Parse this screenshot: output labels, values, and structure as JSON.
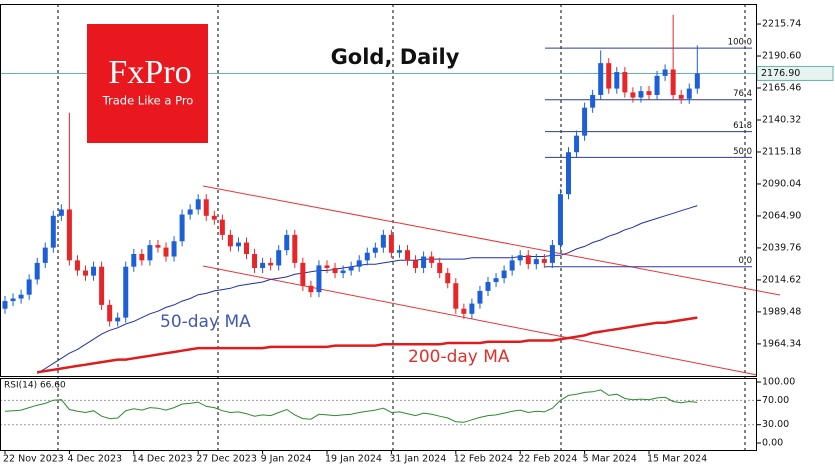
{
  "branding": {
    "logo": "FxPro",
    "tagline": "Trade Like a Pro"
  },
  "chart_data": [
    {
      "type": "candlestick",
      "title": "Gold, Daily",
      "categories": [
        "22 Nov 2023",
        null,
        null,
        null,
        null,
        null,
        null,
        null,
        "4 Dec 2023",
        null,
        null,
        null,
        null,
        null,
        null,
        null,
        "14 Dec 2023",
        null,
        null,
        null,
        null,
        null,
        null,
        null,
        "27 Dec 2023",
        null,
        null,
        null,
        null,
        null,
        null,
        null,
        "9 Jan 2024",
        null,
        null,
        null,
        null,
        null,
        null,
        null,
        "19 Jan 2024",
        null,
        null,
        null,
        null,
        null,
        null,
        null,
        "31 Jan 2024",
        null,
        null,
        null,
        null,
        null,
        null,
        null,
        "12 Feb 2024",
        null,
        null,
        null,
        null,
        null,
        null,
        null,
        "22 Feb 2024",
        null,
        null,
        null,
        null,
        null,
        null,
        null,
        "5 Mar 2024",
        null,
        null,
        null,
        null,
        null,
        null,
        null,
        "15 Mar 2024",
        null,
        null,
        null,
        null,
        null,
        null
      ],
      "open": [
        1992,
        1998,
        2000,
        2003,
        2015,
        2028,
        2040,
        2065,
        2070,
        2030,
        2022,
        2018,
        2025,
        1995,
        1982,
        1985,
        2025,
        2035,
        2030,
        2042,
        2040,
        2033,
        2045,
        2066,
        2070,
        2078,
        2065,
        2062,
        2050,
        2041,
        2044,
        2035,
        2024,
        2028,
        2026,
        2038,
        2050,
        2028,
        2010,
        2005,
        2026,
        2024,
        2020,
        2022,
        2025,
        2030,
        2036,
        2040,
        2050,
        2036,
        2038,
        2030,
        2024,
        2033,
        2028,
        2020,
        2012,
        1992,
        1988,
        1996,
        2006,
        2013,
        2016,
        2022,
        2030,
        2034,
        2027,
        2031,
        2028,
        2042,
        2082,
        2115,
        2128,
        2150,
        2160,
        2185,
        2165,
        2178,
        2162,
        2158,
        2163,
        2160,
        2175,
        2180,
        2160,
        2157,
        2165
      ],
      "high": [
        2002,
        2004,
        2007,
        2019,
        2032,
        2044,
        2069,
        2074,
        2146,
        2034,
        2026,
        2029,
        2029,
        1999,
        1989,
        2029,
        2039,
        2039,
        2046,
        2046,
        2044,
        2049,
        2070,
        2074,
        2082,
        2082,
        2069,
        2066,
        2054,
        2048,
        2048,
        2039,
        2032,
        2032,
        2042,
        2054,
        2054,
        2032,
        2014,
        2030,
        2030,
        2028,
        2026,
        2029,
        2034,
        2040,
        2044,
        2054,
        2054,
        2042,
        2042,
        2034,
        2037,
        2037,
        2032,
        2024,
        2016,
        1996,
        2000,
        2010,
        2017,
        2020,
        2026,
        2034,
        2038,
        2038,
        2035,
        2035,
        2046,
        2086,
        2119,
        2132,
        2154,
        2164,
        2195,
        2189,
        2182,
        2182,
        2166,
        2167,
        2167,
        2179,
        2184,
        2223,
        2164,
        2169,
        2199
      ],
      "low": [
        1988,
        1994,
        1996,
        1999,
        2011,
        2024,
        2036,
        2061,
        2026,
        2018,
        2014,
        2014,
        1991,
        1978,
        1978,
        1981,
        2021,
        2026,
        2026,
        2036,
        2029,
        2029,
        2041,
        2062,
        2066,
        2061,
        2058,
        2046,
        2037,
        2037,
        2031,
        2020,
        2020,
        2022,
        2022,
        2034,
        2024,
        2006,
        2001,
        2001,
        2020,
        2016,
        2016,
        2018,
        2021,
        2026,
        2032,
        2036,
        2032,
        2032,
        2026,
        2020,
        2020,
        2024,
        2016,
        2008,
        1988,
        1984,
        1984,
        1992,
        2002,
        2009,
        2012,
        2018,
        2026,
        2023,
        2023,
        2024,
        2024,
        2038,
        2078,
        2111,
        2124,
        2146,
        2156,
        2161,
        2161,
        2158,
        2154,
        2154,
        2156,
        2156,
        2171,
        2156,
        2153,
        2153,
        2161
      ],
      "close": [
        1998,
        2000,
        2003,
        2015,
        2028,
        2040,
        2065,
        2070,
        2030,
        2022,
        2018,
        2025,
        1995,
        1982,
        1985,
        2025,
        2035,
        2030,
        2042,
        2040,
        2033,
        2045,
        2066,
        2070,
        2078,
        2065,
        2062,
        2050,
        2041,
        2044,
        2035,
        2024,
        2028,
        2026,
        2038,
        2050,
        2028,
        2010,
        2005,
        2026,
        2024,
        2020,
        2022,
        2025,
        2030,
        2036,
        2040,
        2050,
        2036,
        2038,
        2030,
        2024,
        2033,
        2028,
        2020,
        2012,
        1992,
        1988,
        1996,
        2006,
        2013,
        2016,
        2022,
        2030,
        2034,
        2027,
        2031,
        2028,
        2042,
        2082,
        2115,
        2128,
        2150,
        2160,
        2185,
        2165,
        2178,
        2162,
        2158,
        2163,
        2160,
        2175,
        2180,
        2160,
        2157,
        2165,
        2176.9
      ],
      "up_color": "#1d5fd6",
      "down_color": "#e8262a",
      "series": [
        {
          "name": "50-day MA",
          "color": "#1f2fb0",
          "values": [
            null,
            null,
            null,
            null,
            1941,
            1945,
            1949,
            1953,
            1957,
            1960,
            1964,
            1968,
            1972,
            1975,
            1977,
            1980,
            1982,
            1985,
            1988,
            1990,
            1993,
            1995,
            1998,
            2000,
            2003,
            2004,
            2006,
            2007,
            2008,
            2010,
            2011,
            2012,
            2013,
            2015,
            2016,
            2017,
            2019,
            2020,
            2021,
            2022,
            2022,
            2023,
            2024,
            2025,
            2026,
            2027,
            2027,
            2028,
            2029,
            2030,
            2030,
            2030,
            2031,
            2031,
            2031,
            2031,
            2031,
            2031,
            2032,
            2032,
            2032,
            2032,
            2032,
            2032,
            2033,
            2033,
            2033,
            2033,
            2034,
            2034,
            2036,
            2039,
            2041,
            2044,
            2046,
            2049,
            2051,
            2054,
            2056,
            2059,
            2061,
            2063,
            2065,
            2067,
            2069,
            2071,
            2073
          ]
        },
        {
          "name": "200-day MA",
          "color": "#e01b1b",
          "values": [
            null,
            null,
            null,
            null,
            1942,
            1943,
            1944,
            1945,
            1946,
            1947,
            1948,
            1949,
            1950,
            1951,
            1952,
            1952,
            1953,
            1954,
            1955,
            1956,
            1957,
            1958,
            1959,
            1960,
            1961,
            1961,
            1961,
            1961,
            1961,
            1961,
            1961,
            1961,
            1961,
            1962,
            1962,
            1962,
            1962,
            1962,
            1962,
            1962,
            1962,
            1963,
            1963,
            1963,
            1963,
            1963,
            1963,
            1964,
            1964,
            1964,
            1964,
            1964,
            1964,
            1964,
            1964,
            1965,
            1965,
            1965,
            1965,
            1965,
            1966,
            1966,
            1966,
            1966,
            1966,
            1967,
            1967,
            1967,
            1967,
            1968,
            1969,
            1970,
            1971,
            1973,
            1974,
            1975,
            1976,
            1977,
            1978,
            1979,
            1980,
            1981,
            1981,
            1982,
            1983,
            1984,
            1985
          ]
        }
      ],
      "ylim": [
        1939.1,
        2230.7
      ],
      "yticks": [
        2215.74,
        {
          "value": 2190.6,
          "label": "2190.60"
        },
        2165.46,
        2140.32,
        2115.18,
        2090.04,
        {
          "value": 2064.9,
          "label": "2064.90"
        },
        2039.76,
        2014.62,
        1989.48,
        1964.34
      ],
      "last_price": {
        "value": 2176.9,
        "label": "2176.90"
      },
      "last_price_color": "#5fb8a8",
      "fibonacci": {
        "low": 2025,
        "high": 2196.8,
        "color": "#2a3a9e",
        "ratios": [
          {
            "value": 100,
            "label": "100.0"
          },
          76.4,
          61.8,
          {
            "value": 50,
            "label": "50.0"
          },
          {
            "value": 0,
            "label": "0.0"
          }
        ]
      }
    },
    {
      "type": "line",
      "title": "RSI(14) 66.60",
      "color": "#2e8b2e",
      "values": [
        52,
        53,
        54,
        58,
        62,
        65,
        70,
        71,
        55,
        52,
        50,
        53,
        44,
        40,
        41,
        53,
        56,
        54,
        58,
        57,
        54,
        58,
        64,
        65,
        67,
        60,
        58,
        53,
        50,
        51,
        48,
        44,
        46,
        45,
        50,
        55,
        46,
        40,
        39,
        47,
        46,
        45,
        46,
        47,
        50,
        52,
        54,
        57,
        50,
        51,
        48,
        45,
        49,
        47,
        44,
        41,
        35,
        34,
        38,
        42,
        45,
        46,
        49,
        52,
        54,
        50,
        52,
        51,
        57,
        70,
        78,
        80,
        83,
        84,
        87,
        78,
        80,
        73,
        71,
        72,
        71,
        74,
        75,
        68,
        66,
        68,
        66.6
      ],
      "ylim": [
        -11.5,
        106.6
      ],
      "yticks": [
        {
          "value": 100,
          "label": "100.00"
        },
        {
          "value": 70,
          "label": "70.00"
        },
        {
          "value": 30,
          "label": "30.00"
        },
        {
          "value": 0,
          "label": "0.00"
        }
      ]
    }
  ]
}
